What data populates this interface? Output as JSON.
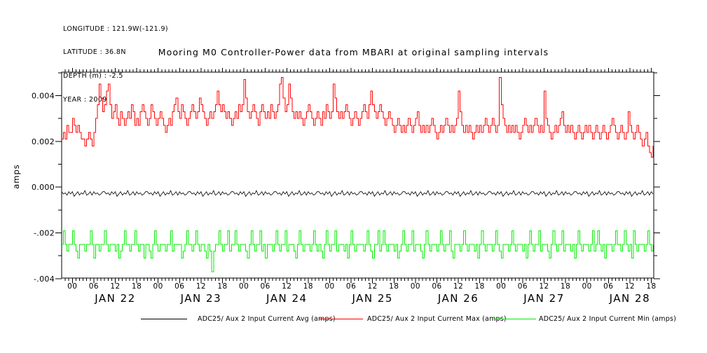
{
  "header": {
    "lines": [
      "LONGITUDE : 121.9W(-121.9)",
      "LATITUDE : 36.8N",
      "DEPTH (m) : -2.5",
      "YEAR : 2009"
    ]
  },
  "chart_data": {
    "type": "line",
    "title": "Mooring M0 Controller-Power data from MBARI at original sampling intervals",
    "ylabel": "amps",
    "ylim": [
      -0.004,
      0.005
    ],
    "grid": "off",
    "legend_position": "bottom",
    "y_ticks": [
      {
        "v": 40,
        "label": "0.004"
      },
      {
        "v": 20,
        "label": "0.002"
      },
      {
        "v": 0,
        "label": "0.000"
      },
      {
        "v": -20,
        "label": "-.002"
      },
      {
        "v": -40,
        "label": "-.004"
      }
    ],
    "y_minor_step_amps": 0.001,
    "x_axis": {
      "start": "2009-01-21 21:00",
      "end": "2009-01-28 18:45",
      "minor_tick": "1 hour",
      "major_tick": "6 hours",
      "hour_labels": [
        "00",
        "06",
        "12",
        "18"
      ],
      "day_labels": [
        "JAN 22",
        "JAN 23",
        "JAN 24",
        "JAN 25",
        "JAN 26",
        "JAN 27",
        "JAN 28"
      ]
    },
    "sample_interval_minutes": 30,
    "value_scale_amps": 0.0001,
    "series": [
      {
        "name": "ADC25/ Aux 2 Input Current Avg (amps)",
        "color": "#000000",
        "mode": "linear",
        "motif": [
          -2,
          -3,
          -2.5,
          -3.5,
          -2,
          -3,
          -2,
          -4,
          -3,
          -2,
          -3.5,
          -2.5,
          -3,
          -1.5,
          -3.5,
          -3,
          -2,
          -3.5,
          -2,
          -3,
          -2.5,
          -3.5,
          -3,
          -2
        ],
        "repeat": 14
      },
      {
        "name": "ADC25/ Aux 2 Input Current Max (amps)",
        "color": "#ff0000",
        "mode": "step",
        "values": [
          21,
          24,
          21,
          27,
          24,
          24,
          30,
          27,
          24,
          27,
          24,
          21,
          21,
          18,
          21,
          24,
          21,
          18,
          24,
          30,
          36,
          45,
          39,
          33,
          36,
          42,
          45,
          36,
          30,
          33,
          36,
          30,
          27,
          33,
          30,
          27,
          30,
          33,
          30,
          36,
          33,
          27,
          30,
          27,
          33,
          36,
          33,
          30,
          27,
          30,
          36,
          33,
          30,
          27,
          30,
          33,
          30,
          27,
          24,
          27,
          30,
          27,
          33,
          36,
          39,
          33,
          30,
          36,
          33,
          30,
          27,
          30,
          33,
          36,
          33,
          30,
          33,
          39,
          36,
          33,
          30,
          27,
          30,
          33,
          30,
          33,
          36,
          42,
          36,
          33,
          36,
          33,
          30,
          33,
          30,
          27,
          30,
          33,
          30,
          36,
          33,
          36,
          47,
          39,
          33,
          30,
          33,
          36,
          33,
          30,
          27,
          33,
          36,
          33,
          30,
          33,
          30,
          36,
          33,
          30,
          33,
          36,
          45,
          48,
          39,
          33,
          36,
          45,
          39,
          33,
          30,
          33,
          30,
          33,
          30,
          27,
          30,
          33,
          36,
          33,
          30,
          27,
          30,
          33,
          30,
          27,
          33,
          30,
          36,
          33,
          30,
          33,
          45,
          39,
          33,
          30,
          33,
          30,
          33,
          36,
          33,
          30,
          27,
          30,
          33,
          30,
          27,
          30,
          33,
          36,
          33,
          30,
          36,
          42,
          36,
          33,
          30,
          33,
          36,
          33,
          30,
          27,
          30,
          33,
          30,
          27,
          24,
          27,
          30,
          27,
          24,
          27,
          24,
          27,
          30,
          27,
          24,
          27,
          30,
          33,
          27,
          24,
          27,
          24,
          27,
          24,
          27,
          30,
          27,
          24,
          21,
          24,
          27,
          24,
          27,
          30,
          27,
          24,
          27,
          24,
          27,
          30,
          42,
          33,
          27,
          24,
          27,
          24,
          27,
          24,
          21,
          24,
          27,
          24,
          27,
          24,
          27,
          30,
          27,
          24,
          27,
          30,
          27,
          24,
          27,
          48,
          36,
          30,
          27,
          24,
          27,
          24,
          27,
          24,
          27,
          24,
          21,
          24,
          27,
          30,
          27,
          24,
          27,
          24,
          27,
          30,
          27,
          24,
          27,
          24,
          42,
          30,
          27,
          24,
          21,
          24,
          27,
          24,
          27,
          30,
          33,
          27,
          24,
          27,
          24,
          27,
          24,
          21,
          24,
          27,
          24,
          21,
          24,
          27,
          24,
          27,
          24,
          21,
          24,
          27,
          24,
          21,
          24,
          27,
          24,
          21,
          24,
          27,
          30,
          27,
          24,
          21,
          24,
          27,
          24,
          21,
          24,
          33,
          27,
          24,
          21,
          24,
          27,
          24,
          21,
          18,
          21,
          24,
          18,
          15,
          13,
          18,
          21,
          24,
          21,
          18
        ]
      },
      {
        "name": "ADC25/ Aux 2 Input Current Min (amps)",
        "color": "#00ee00",
        "mode": "step",
        "values": [
          -25,
          -19,
          -25,
          -28,
          -25,
          -25,
          -19,
          -25,
          -28,
          -31,
          -25,
          -25,
          -25,
          -28,
          -25,
          -25,
          -19,
          -25,
          -31,
          -25,
          -25,
          -28,
          -25,
          -25,
          -19,
          -25,
          -28,
          -25,
          -25,
          -25,
          -28,
          -25,
          -31,
          -28,
          -25,
          -19,
          -25,
          -25,
          -28,
          -25,
          -25,
          -19,
          -25,
          -28,
          -25,
          -25,
          -31,
          -25,
          -25,
          -28,
          -31,
          -25,
          -19,
          -25,
          -28,
          -25,
          -25,
          -25,
          -28,
          -25,
          -25,
          -19,
          -28,
          -25,
          -25,
          -25,
          -25,
          -31,
          -28,
          -25,
          -19,
          -25,
          -25,
          -28,
          -25,
          -19,
          -25,
          -28,
          -25,
          -25,
          -28,
          -31,
          -25,
          -28,
          -37,
          -28,
          -25,
          -25,
          -19,
          -25,
          -28,
          -25,
          -25,
          -19,
          -28,
          -25,
          -25,
          -19,
          -25,
          -28,
          -25,
          -25,
          -25,
          -28,
          -31,
          -25,
          -19,
          -25,
          -28,
          -25,
          -25,
          -19,
          -28,
          -25,
          -31,
          -25,
          -25,
          -25,
          -28,
          -25,
          -19,
          -25,
          -28,
          -25,
          -25,
          -19,
          -28,
          -25,
          -25,
          -25,
          -28,
          -31,
          -25,
          -19,
          -25,
          -28,
          -25,
          -25,
          -25,
          -28,
          -25,
          -19,
          -25,
          -28,
          -25,
          -28,
          -31,
          -25,
          -19,
          -25,
          -28,
          -25,
          -25,
          -19,
          -28,
          -25,
          -25,
          -25,
          -28,
          -25,
          -31,
          -25,
          -19,
          -25,
          -28,
          -25,
          -25,
          -25,
          -25,
          -28,
          -25,
          -19,
          -25,
          -28,
          -31,
          -25,
          -25,
          -19,
          -28,
          -25,
          -19,
          -25,
          -28,
          -25,
          -25,
          -25,
          -28,
          -25,
          -31,
          -28,
          -25,
          -19,
          -25,
          -28,
          -25,
          -25,
          -19,
          -28,
          -25,
          -25,
          -25,
          -28,
          -31,
          -25,
          -19,
          -25,
          -28,
          -25,
          -25,
          -25,
          -28,
          -25,
          -19,
          -25,
          -28,
          -25,
          -25,
          -19,
          -28,
          -31,
          -25,
          -25,
          -25,
          -28,
          -25,
          -19,
          -25,
          -28,
          -25,
          -25,
          -25,
          -28,
          -25,
          -31,
          -25,
          -19,
          -25,
          -28,
          -25,
          -25,
          -25,
          -28,
          -25,
          -19,
          -25,
          -28,
          -31,
          -25,
          -25,
          -25,
          -28,
          -25,
          -19,
          -25,
          -28,
          -25,
          -25,
          -25,
          -28,
          -25,
          -31,
          -25,
          -19,
          -25,
          -28,
          -25,
          -25,
          -19,
          -28,
          -25,
          -25,
          -25,
          -28,
          -31,
          -25,
          -19,
          -25,
          -28,
          -25,
          -25,
          -19,
          -28,
          -25,
          -25,
          -25,
          -28,
          -25,
          -31,
          -25,
          -19,
          -25,
          -28,
          -25,
          -25,
          -25,
          -28,
          -25,
          -19,
          -28,
          -25,
          -19,
          -25,
          -28,
          -25,
          -31,
          -25,
          -25,
          -25,
          -28,
          -25,
          -19,
          -25,
          -25,
          -28,
          -25,
          -19,
          -25,
          -28,
          -25,
          -31,
          -19,
          -25,
          -28,
          -25,
          -25,
          -25,
          -28,
          -25,
          -19,
          -25,
          -28,
          -25,
          -25,
          -19,
          -28,
          -25
        ]
      }
    ]
  }
}
